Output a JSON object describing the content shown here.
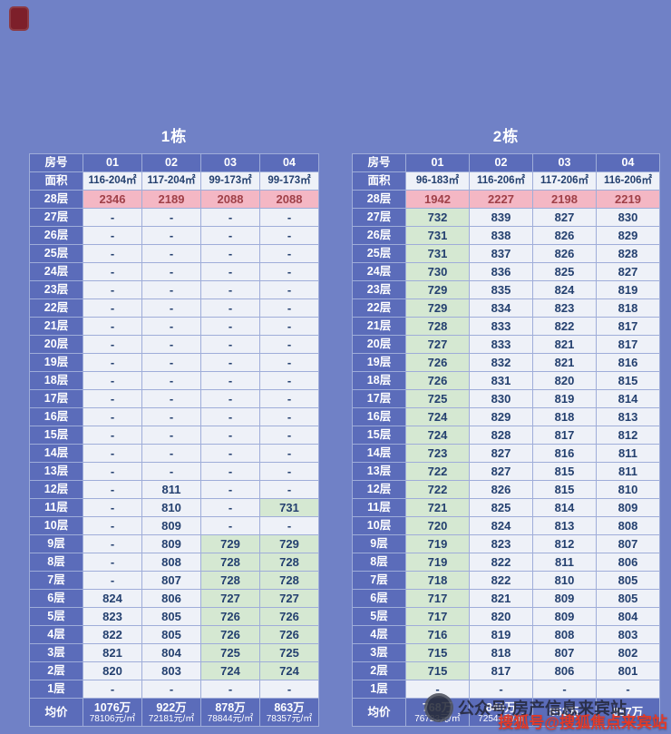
{
  "page": {
    "background": "#7081c6",
    "colors": {
      "header_blue": "#5b6cba",
      "cell_white": "#eef1f8",
      "cell_green": "#d5e8d2",
      "pink_bg": "#f4b7c4",
      "pink_text": "#a04048",
      "cell_text": "#24406f",
      "watermark_red": "#e23a28"
    }
  },
  "watermarks": {
    "wechat": "公众号·房产信息来宾站",
    "sohu": "搜狐号@搜狐焦点来宾站"
  },
  "chart_data": [
    {
      "type": "table",
      "title": "1栋",
      "room_label": "房号",
      "area_label": "面积",
      "avg_label": "均价",
      "columns": [
        "01",
        "02",
        "03",
        "04"
      ],
      "areas": [
        "116-204㎡",
        "117-204㎡",
        "99-173㎡",
        "99-173㎡"
      ],
      "top_floor": {
        "f": "28层",
        "v": [
          "2346",
          "2189",
          "2088",
          "2088"
        ]
      },
      "floors": [
        {
          "f": "27层",
          "v": [
            "-",
            "-",
            "-",
            "-"
          ],
          "g": [
            0,
            0,
            0,
            0
          ]
        },
        {
          "f": "26层",
          "v": [
            "-",
            "-",
            "-",
            "-"
          ],
          "g": [
            0,
            0,
            0,
            0
          ]
        },
        {
          "f": "25层",
          "v": [
            "-",
            "-",
            "-",
            "-"
          ],
          "g": [
            0,
            0,
            0,
            0
          ]
        },
        {
          "f": "24层",
          "v": [
            "-",
            "-",
            "-",
            "-"
          ],
          "g": [
            0,
            0,
            0,
            0
          ]
        },
        {
          "f": "23层",
          "v": [
            "-",
            "-",
            "-",
            "-"
          ],
          "g": [
            0,
            0,
            0,
            0
          ]
        },
        {
          "f": "22层",
          "v": [
            "-",
            "-",
            "-",
            "-"
          ],
          "g": [
            0,
            0,
            0,
            0
          ]
        },
        {
          "f": "21层",
          "v": [
            "-",
            "-",
            "-",
            "-"
          ],
          "g": [
            0,
            0,
            0,
            0
          ]
        },
        {
          "f": "20层",
          "v": [
            "-",
            "-",
            "-",
            "-"
          ],
          "g": [
            0,
            0,
            0,
            0
          ]
        },
        {
          "f": "19层",
          "v": [
            "-",
            "-",
            "-",
            "-"
          ],
          "g": [
            0,
            0,
            0,
            0
          ]
        },
        {
          "f": "18层",
          "v": [
            "-",
            "-",
            "-",
            "-"
          ],
          "g": [
            0,
            0,
            0,
            0
          ]
        },
        {
          "f": "17层",
          "v": [
            "-",
            "-",
            "-",
            "-"
          ],
          "g": [
            0,
            0,
            0,
            0
          ]
        },
        {
          "f": "16层",
          "v": [
            "-",
            "-",
            "-",
            "-"
          ],
          "g": [
            0,
            0,
            0,
            0
          ]
        },
        {
          "f": "15层",
          "v": [
            "-",
            "-",
            "-",
            "-"
          ],
          "g": [
            0,
            0,
            0,
            0
          ]
        },
        {
          "f": "14层",
          "v": [
            "-",
            "-",
            "-",
            "-"
          ],
          "g": [
            0,
            0,
            0,
            0
          ]
        },
        {
          "f": "13层",
          "v": [
            "-",
            "-",
            "-",
            "-"
          ],
          "g": [
            0,
            0,
            0,
            0
          ]
        },
        {
          "f": "12层",
          "v": [
            "-",
            "811",
            "-",
            "-"
          ],
          "g": [
            0,
            0,
            0,
            0
          ]
        },
        {
          "f": "11层",
          "v": [
            "-",
            "810",
            "-",
            "731"
          ],
          "g": [
            0,
            0,
            0,
            1
          ]
        },
        {
          "f": "10层",
          "v": [
            "-",
            "809",
            "-",
            "-"
          ],
          "g": [
            0,
            0,
            0,
            0
          ]
        },
        {
          "f": "9层",
          "v": [
            "-",
            "809",
            "729",
            "729"
          ],
          "g": [
            0,
            0,
            1,
            1
          ]
        },
        {
          "f": "8层",
          "v": [
            "-",
            "808",
            "728",
            "728"
          ],
          "g": [
            0,
            0,
            1,
            1
          ]
        },
        {
          "f": "7层",
          "v": [
            "-",
            "807",
            "728",
            "728"
          ],
          "g": [
            0,
            0,
            1,
            1
          ]
        },
        {
          "f": "6层",
          "v": [
            "824",
            "806",
            "727",
            "727"
          ],
          "g": [
            0,
            0,
            1,
            1
          ]
        },
        {
          "f": "5层",
          "v": [
            "823",
            "805",
            "726",
            "726"
          ],
          "g": [
            0,
            0,
            1,
            1
          ]
        },
        {
          "f": "4层",
          "v": [
            "822",
            "805",
            "726",
            "726"
          ],
          "g": [
            0,
            0,
            1,
            1
          ]
        },
        {
          "f": "3层",
          "v": [
            "821",
            "804",
            "725",
            "725"
          ],
          "g": [
            0,
            0,
            1,
            1
          ]
        },
        {
          "f": "2层",
          "v": [
            "820",
            "803",
            "724",
            "724"
          ],
          "g": [
            0,
            0,
            1,
            1
          ]
        },
        {
          "f": "1层",
          "v": [
            "-",
            "-",
            "-",
            "-"
          ],
          "g": [
            0,
            0,
            0,
            0
          ]
        }
      ],
      "avg": [
        {
          "p": "1076万",
          "u": "78106元/㎡"
        },
        {
          "p": "922万",
          "u": "72181元/㎡"
        },
        {
          "p": "878万",
          "u": "78844元/㎡"
        },
        {
          "p": "863万",
          "u": "78357元/㎡"
        }
      ]
    },
    {
      "type": "table",
      "title": "2栋",
      "room_label": "房号",
      "area_label": "面积",
      "avg_label": "均价",
      "columns": [
        "01",
        "02",
        "03",
        "04"
      ],
      "areas": [
        "96-183㎡",
        "116-206㎡",
        "117-206㎡",
        "116-206㎡"
      ],
      "top_floor": {
        "f": "28层",
        "v": [
          "1942",
          "2227",
          "2198",
          "2219"
        ]
      },
      "floors": [
        {
          "f": "27层",
          "v": [
            "732",
            "839",
            "827",
            "830"
          ],
          "g": [
            1,
            0,
            0,
            0
          ]
        },
        {
          "f": "26层",
          "v": [
            "731",
            "838",
            "826",
            "829"
          ],
          "g": [
            1,
            0,
            0,
            0
          ]
        },
        {
          "f": "25层",
          "v": [
            "731",
            "837",
            "826",
            "828"
          ],
          "g": [
            1,
            0,
            0,
            0
          ]
        },
        {
          "f": "24层",
          "v": [
            "730",
            "836",
            "825",
            "827"
          ],
          "g": [
            1,
            0,
            0,
            0
          ]
        },
        {
          "f": "23层",
          "v": [
            "729",
            "835",
            "824",
            "819"
          ],
          "g": [
            1,
            0,
            0,
            0
          ]
        },
        {
          "f": "22层",
          "v": [
            "729",
            "834",
            "823",
            "818"
          ],
          "g": [
            1,
            0,
            0,
            0
          ]
        },
        {
          "f": "21层",
          "v": [
            "728",
            "833",
            "822",
            "817"
          ],
          "g": [
            1,
            0,
            0,
            0
          ]
        },
        {
          "f": "20层",
          "v": [
            "727",
            "833",
            "821",
            "817"
          ],
          "g": [
            1,
            0,
            0,
            0
          ]
        },
        {
          "f": "19层",
          "v": [
            "726",
            "832",
            "821",
            "816"
          ],
          "g": [
            1,
            0,
            0,
            0
          ]
        },
        {
          "f": "18层",
          "v": [
            "726",
            "831",
            "820",
            "815"
          ],
          "g": [
            1,
            0,
            0,
            0
          ]
        },
        {
          "f": "17层",
          "v": [
            "725",
            "830",
            "819",
            "814"
          ],
          "g": [
            1,
            0,
            0,
            0
          ]
        },
        {
          "f": "16层",
          "v": [
            "724",
            "829",
            "818",
            "813"
          ],
          "g": [
            1,
            0,
            0,
            0
          ]
        },
        {
          "f": "15层",
          "v": [
            "724",
            "828",
            "817",
            "812"
          ],
          "g": [
            1,
            0,
            0,
            0
          ]
        },
        {
          "f": "14层",
          "v": [
            "723",
            "827",
            "816",
            "811"
          ],
          "g": [
            1,
            0,
            0,
            0
          ]
        },
        {
          "f": "13层",
          "v": [
            "722",
            "827",
            "815",
            "811"
          ],
          "g": [
            1,
            0,
            0,
            0
          ]
        },
        {
          "f": "12层",
          "v": [
            "722",
            "826",
            "815",
            "810"
          ],
          "g": [
            1,
            0,
            0,
            0
          ]
        },
        {
          "f": "11层",
          "v": [
            "721",
            "825",
            "814",
            "809"
          ],
          "g": [
            1,
            0,
            0,
            0
          ]
        },
        {
          "f": "10层",
          "v": [
            "720",
            "824",
            "813",
            "808"
          ],
          "g": [
            1,
            0,
            0,
            0
          ]
        },
        {
          "f": "9层",
          "v": [
            "719",
            "823",
            "812",
            "807"
          ],
          "g": [
            1,
            0,
            0,
            0
          ]
        },
        {
          "f": "8层",
          "v": [
            "719",
            "822",
            "811",
            "806"
          ],
          "g": [
            1,
            0,
            0,
            0
          ]
        },
        {
          "f": "7层",
          "v": [
            "718",
            "822",
            "810",
            "805"
          ],
          "g": [
            1,
            0,
            0,
            0
          ]
        },
        {
          "f": "6层",
          "v": [
            "717",
            "821",
            "809",
            "805"
          ],
          "g": [
            1,
            0,
            0,
            0
          ]
        },
        {
          "f": "5层",
          "v": [
            "717",
            "820",
            "809",
            "804"
          ],
          "g": [
            1,
            0,
            0,
            0
          ]
        },
        {
          "f": "4层",
          "v": [
            "716",
            "819",
            "808",
            "803"
          ],
          "g": [
            1,
            0,
            0,
            0
          ]
        },
        {
          "f": "3层",
          "v": [
            "715",
            "818",
            "807",
            "802"
          ],
          "g": [
            1,
            0,
            0,
            0
          ]
        },
        {
          "f": "2层",
          "v": [
            "715",
            "817",
            "806",
            "801"
          ],
          "g": [
            1,
            0,
            0,
            0
          ]
        },
        {
          "f": "1层",
          "v": [
            "-",
            "-",
            "-",
            "-"
          ],
          "g": [
            0,
            0,
            0,
            0
          ]
        }
      ],
      "avg": [
        {
          "p": "768万",
          "u": "76723元/㎡"
        },
        {
          "p": "840万",
          "u": "72544元/㎡"
        },
        {
          "p": "853万",
          "u": ""
        },
        {
          "p": "857万",
          "u": ""
        }
      ]
    }
  ]
}
